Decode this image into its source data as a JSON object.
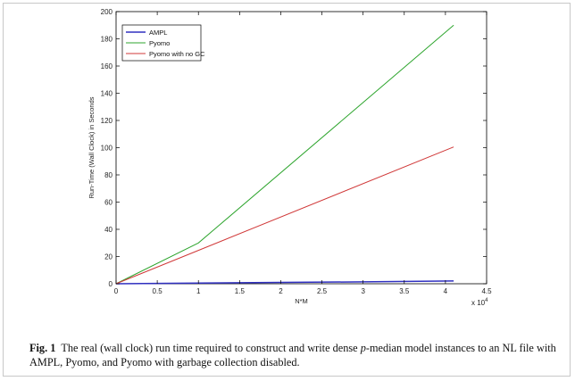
{
  "chart_data": {
    "type": "line",
    "title": "",
    "xlabel": "N*M",
    "ylabel": "Run-Time (Wall Clock) in Seconds",
    "xlim": [
      0,
      4.5
    ],
    "ylim": [
      0,
      200
    ],
    "x_multiplier_label": "x 10",
    "x_multiplier_exponent": "4",
    "xticks": [
      "0",
      "0.5",
      "1",
      "1.5",
      "2",
      "2.5",
      "3",
      "3.5",
      "4",
      "4.5"
    ],
    "yticks": [
      "0",
      "20",
      "40",
      "60",
      "80",
      "100",
      "120",
      "140",
      "160",
      "180",
      "200"
    ],
    "legend_position": "top-left",
    "grid": false,
    "series": [
      {
        "name": "AMPL",
        "color": "#3030c0",
        "x": [
          0,
          1.0,
          2.0,
          3.0,
          4.1
        ],
        "y": [
          0,
          0.5,
          1.0,
          1.4,
          2.0
        ]
      },
      {
        "name": "Pyomo",
        "color": "#2ea52e",
        "x": [
          0,
          1.0,
          4.1
        ],
        "y": [
          0,
          30,
          190
        ]
      },
      {
        "name": "Pyomo with no GC",
        "color": "#d03838",
        "x": [
          0,
          1.0,
          4.1
        ],
        "y": [
          0,
          24.5,
          100.5
        ]
      }
    ]
  },
  "caption": {
    "label": "Fig. 1",
    "text_1": "The real (wall clock) run time required to construct and write dense ",
    "text_italic": "p",
    "text_2": "-median model instances to an NL file with AMPL, Pyomo, and Pyomo with garbage collection disabled."
  }
}
